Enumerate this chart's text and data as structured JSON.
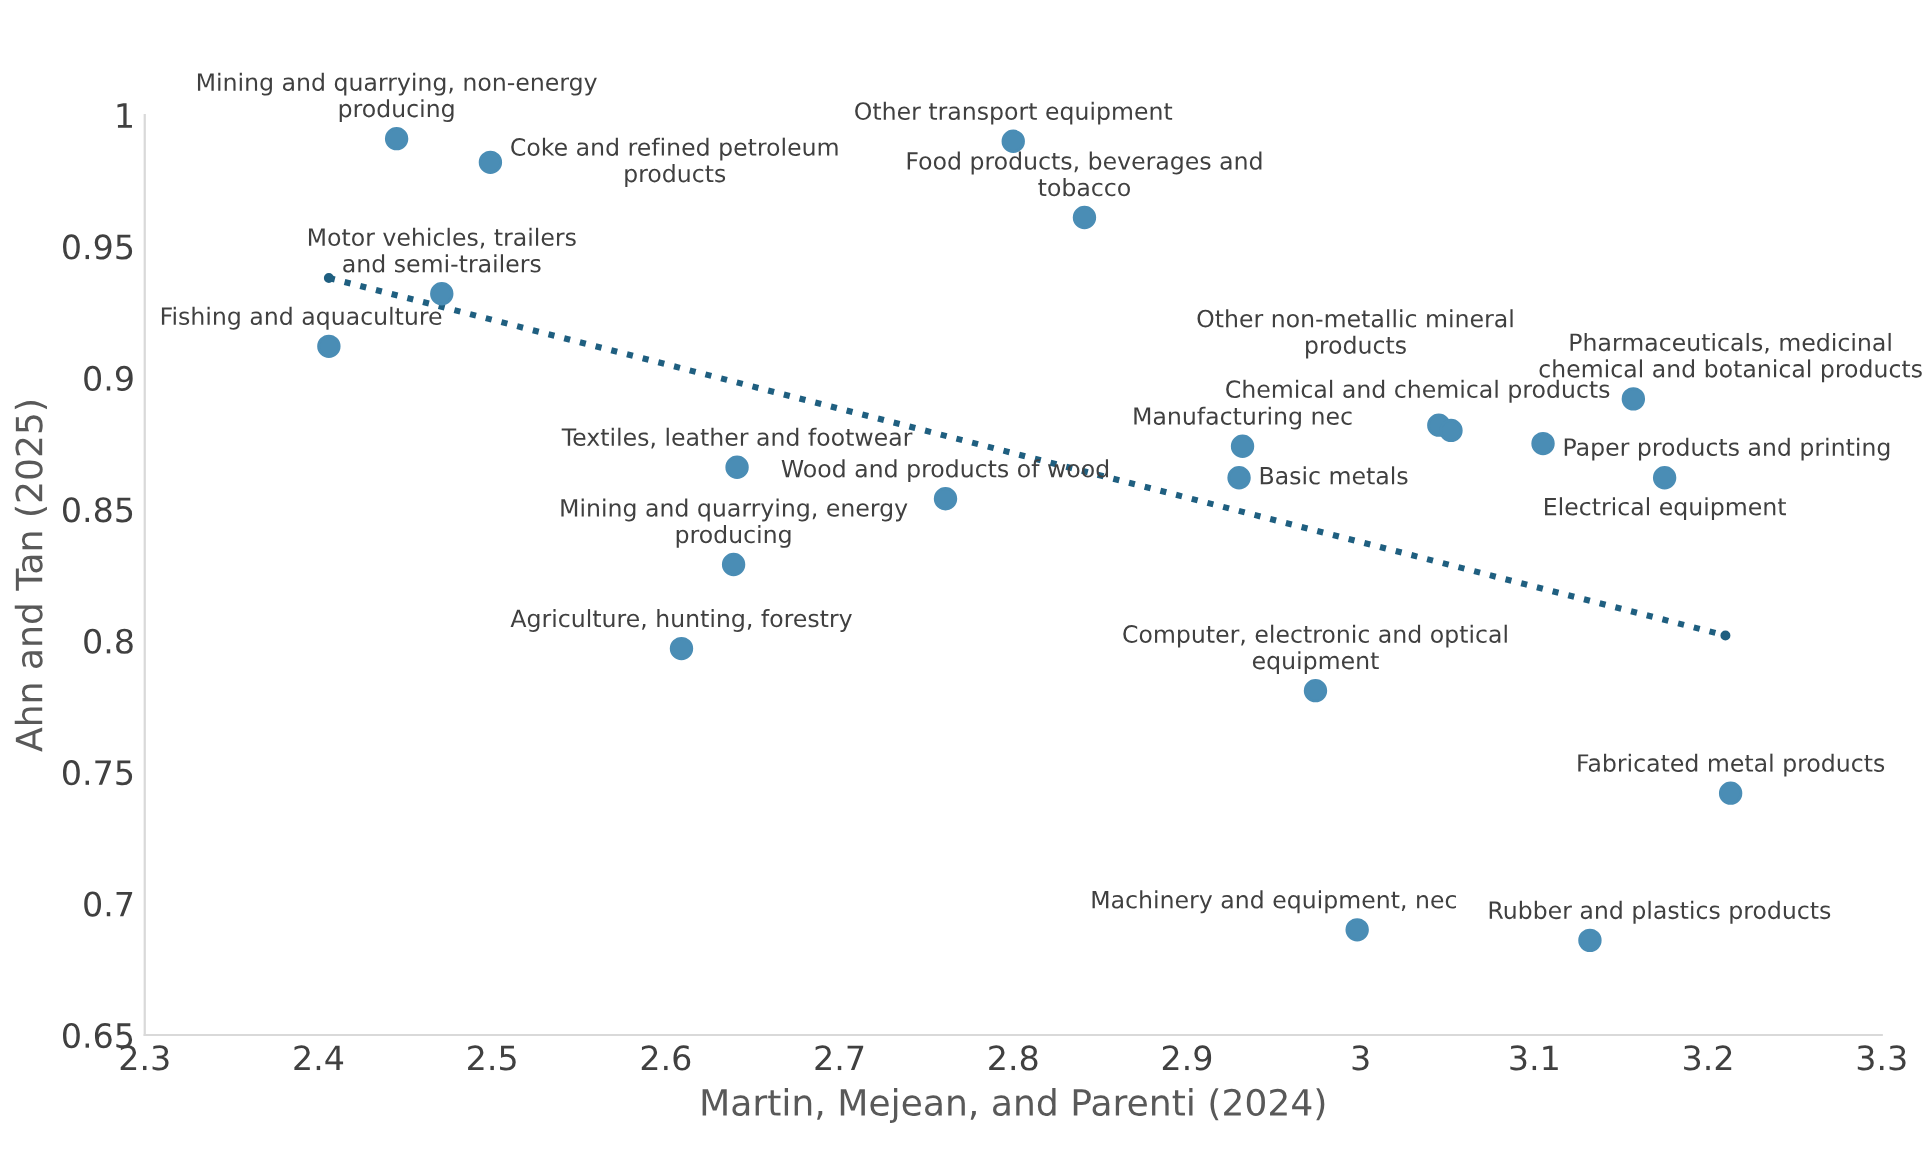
{
  "chart_data": {
    "type": "scatter",
    "xlabel": "Martin, Mejean, and Parenti (2024)",
    "ylabel": "Ahn and Tan (2025)",
    "xlim": [
      2.3,
      3.3
    ],
    "xticks": [
      2.3,
      2.4,
      2.5,
      2.6,
      2.7,
      2.8,
      2.9,
      3,
      3.1,
      3.2,
      3.3
    ],
    "ylim": [
      0.65,
      1
    ],
    "yticks": [
      0.65,
      0.7,
      0.75,
      0.8,
      0.85,
      0.9,
      0.95,
      1
    ],
    "grid": false,
    "marker": "circle",
    "series": [
      {
        "color": "#4a8db5",
        "x": [
          2.445,
          2.499,
          2.8,
          2.841,
          2.471,
          2.406,
          2.641,
          2.761,
          2.639,
          2.609,
          2.932,
          2.93,
          3.045,
          3.052,
          3.105,
          3.157,
          3.175,
          2.974,
          3.213,
          2.998,
          3.132
        ],
        "values": [
          0.991,
          0.982,
          0.99,
          0.961,
          0.932,
          0.912,
          0.866,
          0.854,
          0.829,
          0.797,
          0.874,
          0.862,
          0.882,
          0.88,
          0.875,
          0.892,
          0.862,
          0.781,
          0.742,
          0.69,
          0.686
        ]
      },
      {
        "type": "line",
        "color": "#1f5f80",
        "line_style": "dotted",
        "x": [
          2.406,
          3.21
        ],
        "values": [
          0.938,
          0.802
        ]
      }
    ],
    "annotations": [
      {
        "text": "Mining and quarrying, non-energy producing",
        "x": 2.445,
        "y": 0.991
      },
      {
        "text": "Coke and refined petroleum products",
        "x": 2.499,
        "y": 0.982
      },
      {
        "text": "Other transport equipment",
        "x": 2.8,
        "y": 0.99
      },
      {
        "text": "Food products, beverages and tobacco",
        "x": 2.841,
        "y": 0.961
      },
      {
        "text": "Motor vehicles, trailers and semi-trailers",
        "x": 2.471,
        "y": 0.932
      },
      {
        "text": "Fishing and aquaculture",
        "x": 2.406,
        "y": 0.912
      },
      {
        "text": "Textiles, leather and footwear",
        "x": 2.641,
        "y": 0.866
      },
      {
        "text": "Wood and products of wood",
        "x": 2.761,
        "y": 0.854
      },
      {
        "text": "Mining and quarrying, energy producing",
        "x": 2.639,
        "y": 0.829
      },
      {
        "text": "Agriculture, hunting, forestry",
        "x": 2.609,
        "y": 0.797
      },
      {
        "text": "Manufacturing nec",
        "x": 2.932,
        "y": 0.874
      },
      {
        "text": "Basic metals",
        "x": 2.93,
        "y": 0.862
      },
      {
        "text": "Other non-metallic mineral products",
        "x": 3.045,
        "y": 0.882
      },
      {
        "text": "Chemical and chemical products",
        "x": 3.052,
        "y": 0.88
      },
      {
        "text": "Paper products and printing",
        "x": 3.105,
        "y": 0.875
      },
      {
        "text": "Pharmaceuticals, medicinal chemical and botanical products",
        "x": 3.157,
        "y": 0.892
      },
      {
        "text": "Electrical equipment",
        "x": 3.175,
        "y": 0.862
      },
      {
        "text": "Computer, electronic and optical equipment",
        "x": 2.974,
        "y": 0.781
      },
      {
        "text": "Fabricated metal products",
        "x": 3.213,
        "y": 0.742
      },
      {
        "text": "Machinery and equipment, nec",
        "x": 2.998,
        "y": 0.69
      },
      {
        "text": "Rubber and plastics products",
        "x": 3.132,
        "y": 0.686
      }
    ]
  }
}
